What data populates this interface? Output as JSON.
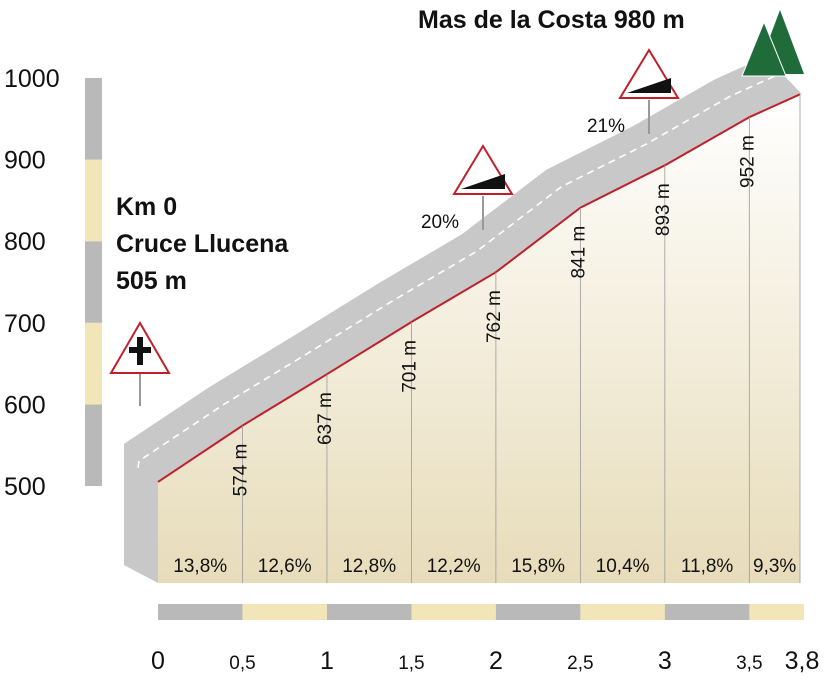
{
  "chart_data": {
    "type": "area",
    "title": "Mas de la Costa 980 m",
    "start_label": [
      "Km 0",
      "Cruce Llucena",
      "505 m"
    ],
    "x_unit": "km",
    "y_unit": "m",
    "ylim": [
      500,
      1000
    ],
    "xlim": [
      0,
      3.8
    ],
    "y_ticks": [
      1000,
      900,
      800,
      700,
      600,
      500
    ],
    "x_ticks": [
      {
        "value": 0,
        "label": "0",
        "major": true
      },
      {
        "value": 0.5,
        "label": "0,5",
        "major": false
      },
      {
        "value": 1,
        "label": "1",
        "major": true
      },
      {
        "value": 1.5,
        "label": "1,5",
        "major": false
      },
      {
        "value": 2,
        "label": "2",
        "major": true
      },
      {
        "value": 2.5,
        "label": "2,5",
        "major": false
      },
      {
        "value": 3,
        "label": "3",
        "major": true
      },
      {
        "value": 3.5,
        "label": "3,5",
        "major": false
      },
      {
        "value": 3.8,
        "label": "3,8",
        "major": true
      }
    ],
    "profile": [
      {
        "x": 0,
        "y": 505
      },
      {
        "x": 0.5,
        "y": 574,
        "label": "574 m"
      },
      {
        "x": 1,
        "y": 637,
        "label": "637 m"
      },
      {
        "x": 1.5,
        "y": 701,
        "label": "701 m"
      },
      {
        "x": 2,
        "y": 762,
        "label": "762 m"
      },
      {
        "x": 2.5,
        "y": 841,
        "label": "841 m"
      },
      {
        "x": 3,
        "y": 893,
        "label": "893 m"
      },
      {
        "x": 3.5,
        "y": 952,
        "label": "952 m"
      },
      {
        "x": 3.8,
        "y": 980
      }
    ],
    "gradients": [
      "13,8%",
      "12,6%",
      "12,8%",
      "12,2%",
      "15,8%",
      "10,4%",
      "11,8%",
      "9,3%"
    ],
    "signs": [
      {
        "type": "crossroads",
        "x": 0
      },
      {
        "type": "steep-grade",
        "x": 1.98,
        "label": "20%"
      },
      {
        "type": "steep-grade",
        "x": 3.0,
        "label": "21%"
      }
    ],
    "summit_icon": "pine-trees-icon",
    "colors": {
      "road": "#c8c8c9",
      "profile_line": "#c0202a",
      "fill_top": "#ffffff",
      "fill_bottom": "#e7dcba",
      "band_gray": "#b9b9ba",
      "band_beige": "#f2e6b9",
      "tree": "#1f6b3a",
      "sign_border": "#c0202a"
    }
  }
}
